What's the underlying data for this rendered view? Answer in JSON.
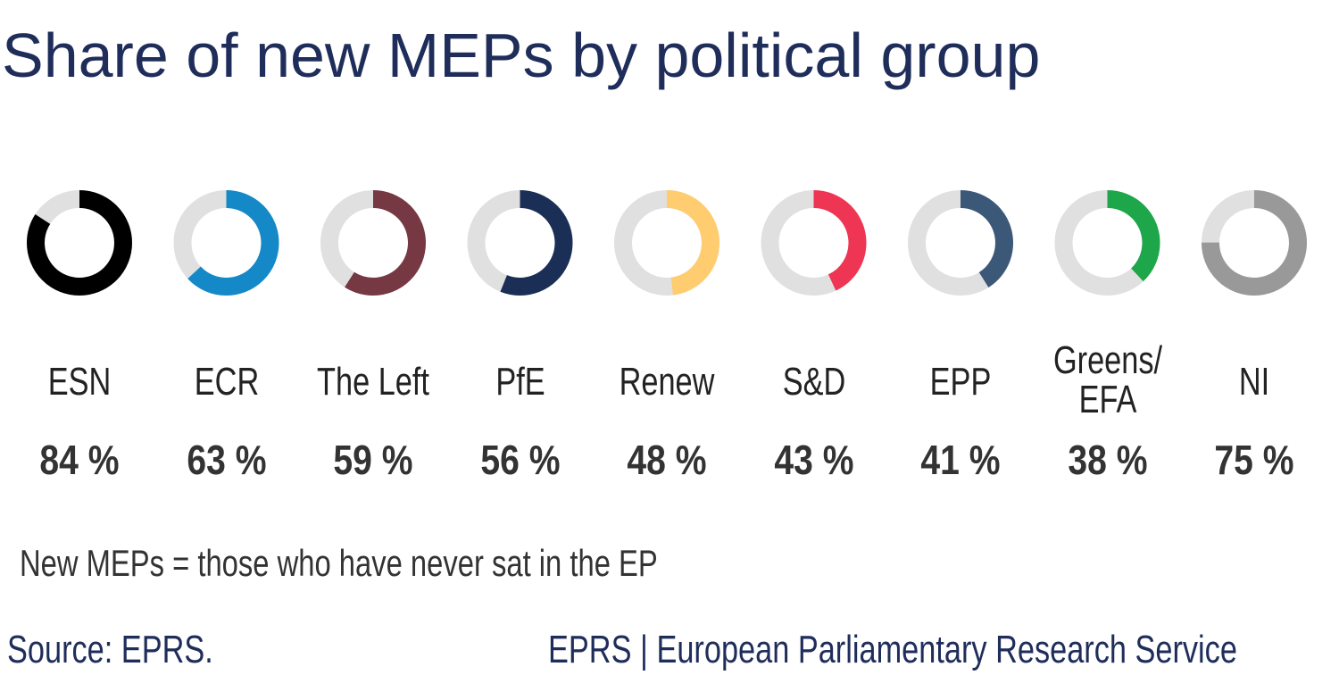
{
  "chart_data": {
    "type": "donut",
    "title": "Share of new MEPs by political group",
    "categories": [
      "ESN",
      "ECR",
      "The Left",
      "PfE",
      "Renew",
      "S&D",
      "EPP",
      "Greens/\nEFA",
      "NI"
    ],
    "labels": [
      "84 %",
      "63 %",
      "59 %",
      "56 %",
      "48 %",
      "43 %",
      "41 %",
      "38 %",
      "75 %"
    ],
    "values": [
      84,
      63,
      59,
      56,
      48,
      43,
      41,
      38,
      75
    ],
    "colors": [
      "#000000",
      "#1589c8",
      "#763843",
      "#1b2e55",
      "#ffcc6f",
      "#ee3554",
      "#3c5878",
      "#1da64a",
      "#999999"
    ],
    "track_color": "#e0e0e0"
  },
  "note": "New MEPs = those who have never sat in the EP",
  "source": "Source: EPRS.",
  "org": "EPRS | European Parliamentary Research Service"
}
